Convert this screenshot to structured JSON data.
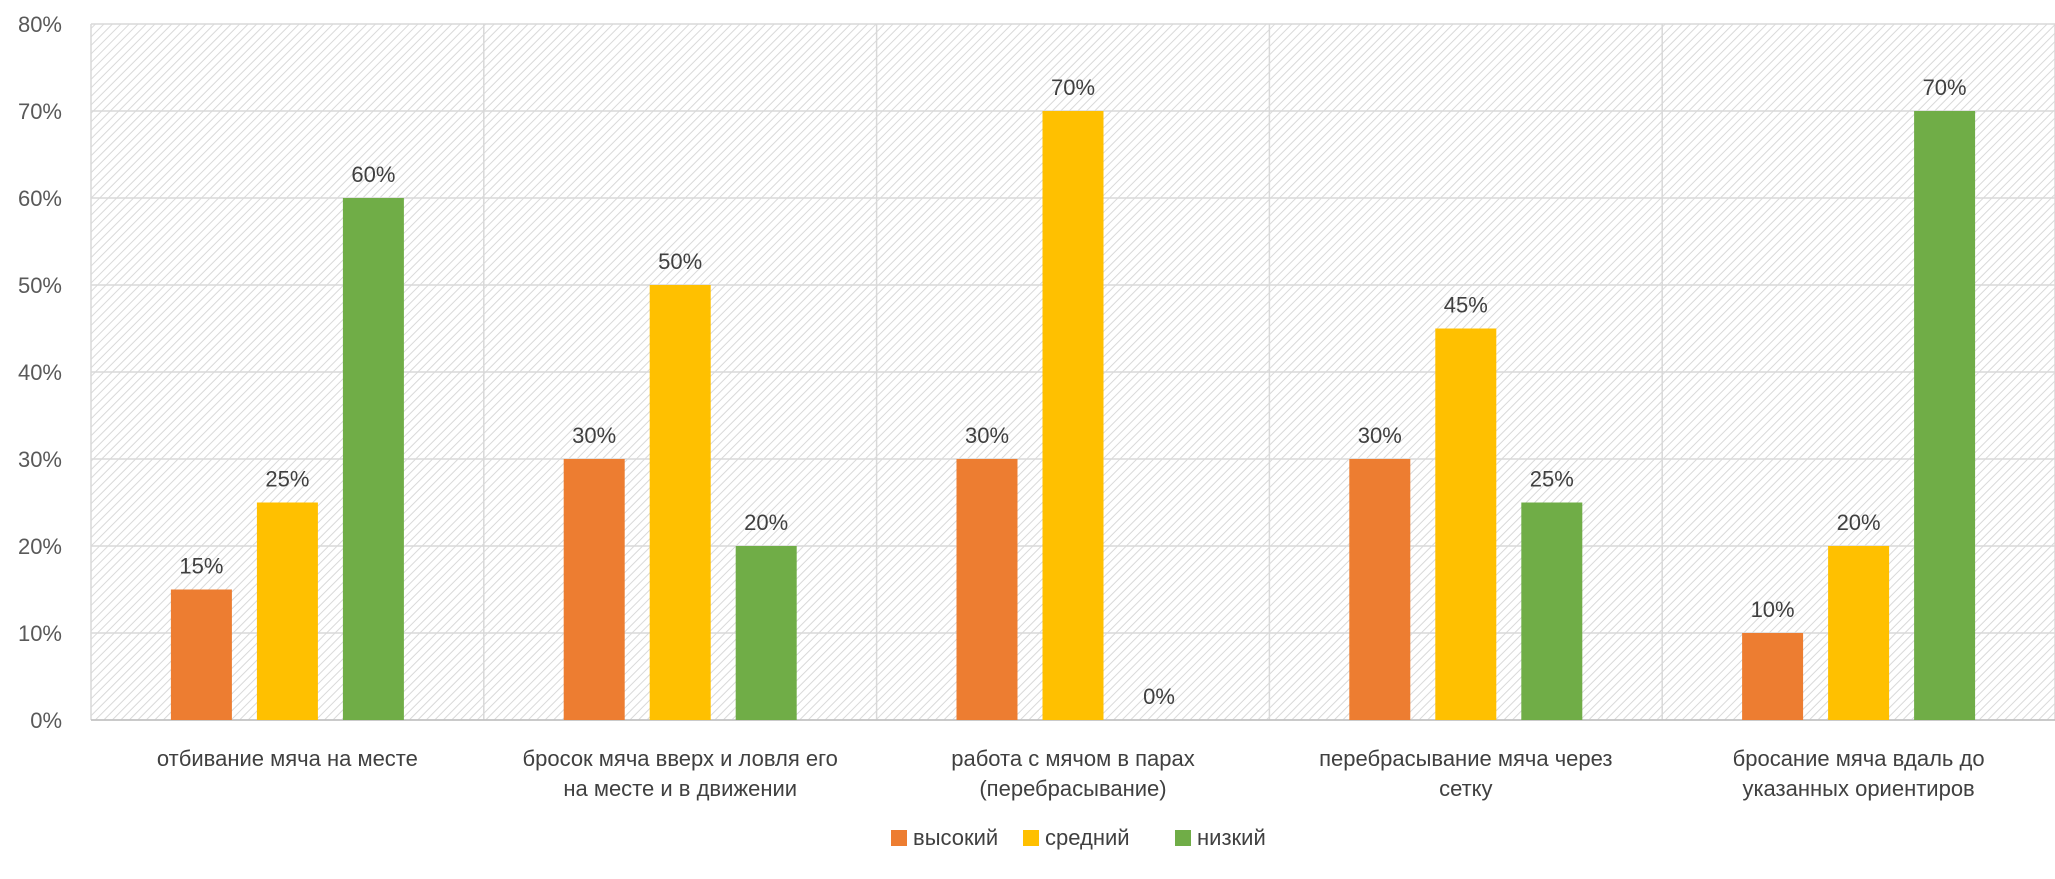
{
  "chart_data": {
    "type": "bar",
    "title": "",
    "xlabel": "",
    "ylabel": "",
    "ylim": [
      0,
      80
    ],
    "yticks": [
      "0%",
      "10%",
      "20%",
      "30%",
      "40%",
      "50%",
      "60%",
      "70%",
      "80%"
    ],
    "value_unit": "%",
    "grid": true,
    "legend_position": "bottom",
    "categories": [
      [
        "отбивание мяча на месте"
      ],
      [
        "бросок мяча вверх и ловля его",
        "на месте и в движении"
      ],
      [
        "работа с мячом в парах",
        "(перебрасывание)"
      ],
      [
        "перебрасывание мяча через",
        "сетку"
      ],
      [
        "бросание мяча вдаль до",
        "указанных ориентиров"
      ]
    ],
    "series": [
      {
        "name": "высокий",
        "color": "#ED7D31",
        "values": [
          15,
          30,
          30,
          30,
          10
        ]
      },
      {
        "name": "средний",
        "color": "#FFC000",
        "values": [
          25,
          50,
          70,
          45,
          20
        ]
      },
      {
        "name": "низкий",
        "color": "#70AD47",
        "values": [
          60,
          20,
          0,
          25,
          70
        ]
      }
    ]
  }
}
